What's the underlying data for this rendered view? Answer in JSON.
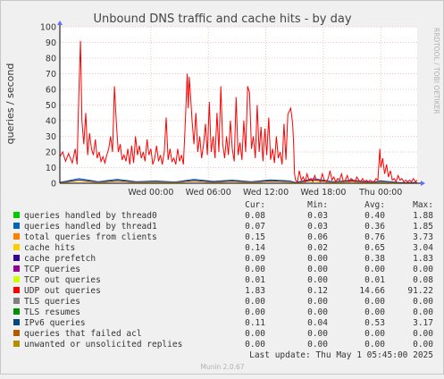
{
  "chart_data": {
    "type": "area",
    "title": "Unbound DNS traffic and cache hits - by day",
    "ylabel": "queries / second",
    "side_label": "RRDTOOL / TOBI OETIKER",
    "ylim": [
      0,
      100
    ],
    "yticks": [
      0,
      10,
      20,
      30,
      40,
      50,
      60,
      70,
      80,
      90,
      100
    ],
    "xticks": [
      "Wed 00:00",
      "Wed 06:00",
      "Wed 12:00",
      "Wed 18:00",
      "Thu 00:00"
    ],
    "x_hours": [
      -9.5,
      27.8
    ],
    "xtick_hours": [
      0,
      6,
      12,
      18,
      24
    ],
    "grid": true,
    "columns": [
      "Cur:",
      "Min:",
      "Avg:",
      "Max:"
    ],
    "series": [
      {
        "name": "queries handled by thread0",
        "color": "#00cc00",
        "stats": [
          "0.08",
          "0.03",
          "0.40",
          "1.88"
        ]
      },
      {
        "name": "queries handled by thread1",
        "color": "#0066b3",
        "stats": [
          "0.07",
          "0.03",
          "0.36",
          "1.85"
        ]
      },
      {
        "name": "total queries from clients",
        "color": "#ff8000",
        "stats": [
          "0.15",
          "0.06",
          "0.76",
          "3.73"
        ]
      },
      {
        "name": "cache hits",
        "color": "#ffcc00",
        "stats": [
          "0.14",
          "0.02",
          "0.65",
          "3.04"
        ]
      },
      {
        "name": "cache prefetch",
        "color": "#330099",
        "stats": [
          "0.09",
          "0.00",
          "0.38",
          "1.83"
        ]
      },
      {
        "name": "TCP queries",
        "color": "#990099",
        "stats": [
          "0.00",
          "0.00",
          "0.00",
          "0.00"
        ]
      },
      {
        "name": "TCP out queries",
        "color": "#ccff00",
        "stats": [
          "0.01",
          "0.00",
          "0.01",
          "0.08"
        ]
      },
      {
        "name": "UDP out queries",
        "color": "#ff0000",
        "stats": [
          "1.83",
          "0.12",
          "14.66",
          "91.22"
        ]
      },
      {
        "name": "TLS queries",
        "color": "#808080",
        "stats": [
          "0.00",
          "0.00",
          "0.00",
          "0.00"
        ]
      },
      {
        "name": "TLS resumes",
        "color": "#008f00",
        "stats": [
          "0.00",
          "0.00",
          "0.00",
          "0.00"
        ]
      },
      {
        "name": "IPv6 queries",
        "color": "#00487d",
        "stats": [
          "0.11",
          "0.04",
          "0.53",
          "3.17"
        ]
      },
      {
        "name": "queries that failed acl",
        "color": "#b35a00",
        "stats": [
          "0.00",
          "0.00",
          "0.00",
          "0.00"
        ]
      },
      {
        "name": "unwanted or unsolicited replies",
        "color": "#b38f00",
        "stats": [
          "0.00",
          "0.00",
          "0.00",
          "0.00"
        ]
      }
    ],
    "udp_out_profile": [
      [
        -9.5,
        17
      ],
      [
        -9.2,
        20
      ],
      [
        -8.9,
        14
      ],
      [
        -8.6,
        19
      ],
      [
        -8.2,
        13
      ],
      [
        -7.9,
        22
      ],
      [
        -7.7,
        12
      ],
      [
        -7.5,
        60
      ],
      [
        -7.35,
        91
      ],
      [
        -7.2,
        40
      ],
      [
        -7.0,
        25
      ],
      [
        -6.8,
        45
      ],
      [
        -6.6,
        18
      ],
      [
        -6.4,
        32
      ],
      [
        -6.2,
        22
      ],
      [
        -6.0,
        18
      ],
      [
        -5.8,
        28
      ],
      [
        -5.6,
        16
      ],
      [
        -5.4,
        20
      ],
      [
        -5.2,
        14
      ],
      [
        -5.0,
        17
      ],
      [
        -4.8,
        13
      ],
      [
        -4.6,
        18
      ],
      [
        -4.4,
        22
      ],
      [
        -4.2,
        30
      ],
      [
        -4.0,
        20
      ],
      [
        -3.8,
        62
      ],
      [
        -3.6,
        38
      ],
      [
        -3.4,
        20
      ],
      [
        -3.2,
        25
      ],
      [
        -3.0,
        15
      ],
      [
        -2.8,
        18
      ],
      [
        -2.6,
        14
      ],
      [
        -2.4,
        22
      ],
      [
        -2.2,
        12
      ],
      [
        -2.0,
        24
      ],
      [
        -1.8,
        13
      ],
      [
        -1.6,
        30
      ],
      [
        -1.4,
        18
      ],
      [
        -1.2,
        24
      ],
      [
        -1.0,
        16
      ],
      [
        -0.8,
        20
      ],
      [
        -0.6,
        14
      ],
      [
        -0.4,
        28
      ],
      [
        -0.2,
        18
      ],
      [
        0,
        22
      ],
      [
        0.2,
        12
      ],
      [
        0.4,
        16
      ],
      [
        0.6,
        24
      ],
      [
        0.8,
        14
      ],
      [
        1.0,
        18
      ],
      [
        1.2,
        12
      ],
      [
        1.4,
        20
      ],
      [
        1.6,
        42
      ],
      [
        1.8,
        15
      ],
      [
        2.0,
        22
      ],
      [
        2.2,
        14
      ],
      [
        2.4,
        16
      ],
      [
        2.6,
        12
      ],
      [
        2.8,
        22
      ],
      [
        3.0,
        14
      ],
      [
        3.2,
        18
      ],
      [
        3.4,
        12
      ],
      [
        3.6,
        40
      ],
      [
        3.8,
        70
      ],
      [
        3.9,
        48
      ],
      [
        4.0,
        68
      ],
      [
        4.15,
        55
      ],
      [
        4.3,
        40
      ],
      [
        4.5,
        25
      ],
      [
        4.7,
        45
      ],
      [
        4.9,
        20
      ],
      [
        5.1,
        30
      ],
      [
        5.3,
        16
      ],
      [
        5.5,
        25
      ],
      [
        5.7,
        38
      ],
      [
        5.9,
        18
      ],
      [
        6.1,
        52
      ],
      [
        6.3,
        20
      ],
      [
        6.5,
        30
      ],
      [
        6.7,
        16
      ],
      [
        6.9,
        45
      ],
      [
        7.1,
        20
      ],
      [
        7.3,
        62
      ],
      [
        7.5,
        25
      ],
      [
        7.7,
        16
      ],
      [
        7.9,
        30
      ],
      [
        8.1,
        18
      ],
      [
        8.3,
        40
      ],
      [
        8.5,
        22
      ],
      [
        8.7,
        14
      ],
      [
        8.9,
        55
      ],
      [
        9.1,
        18
      ],
      [
        9.3,
        26
      ],
      [
        9.5,
        15
      ],
      [
        9.7,
        40
      ],
      [
        9.9,
        20
      ],
      [
        10.1,
        62
      ],
      [
        10.3,
        58
      ],
      [
        10.5,
        22
      ],
      [
        10.7,
        30
      ],
      [
        10.9,
        16
      ],
      [
        11.1,
        50
      ],
      [
        11.3,
        20
      ],
      [
        11.5,
        36
      ],
      [
        11.7,
        14
      ],
      [
        11.9,
        35
      ],
      [
        12.1,
        18
      ],
      [
        12.3,
        42
      ],
      [
        12.5,
        15
      ],
      [
        12.7,
        22
      ],
      [
        12.9,
        13
      ],
      [
        13.1,
        30
      ],
      [
        13.3,
        16
      ],
      [
        13.5,
        20
      ],
      [
        13.7,
        12
      ],
      [
        13.9,
        38
      ],
      [
        14.1,
        15
      ],
      [
        14.3,
        44
      ],
      [
        14.6,
        48
      ],
      [
        14.8,
        38
      ],
      [
        14.9,
        25
      ],
      [
        15.0,
        6
      ],
      [
        15.1,
        2
      ],
      [
        15.3,
        1
      ],
      [
        15.5,
        8
      ],
      [
        15.7,
        2
      ],
      [
        15.9,
        4
      ],
      [
        16.1,
        1
      ],
      [
        16.3,
        6
      ],
      [
        16.5,
        2
      ],
      [
        16.7,
        3
      ],
      [
        16.9,
        1
      ],
      [
        17.1,
        5
      ],
      [
        17.3,
        2
      ],
      [
        17.5,
        2
      ],
      [
        17.7,
        1
      ],
      [
        17.9,
        6
      ],
      [
        18.1,
        2
      ],
      [
        18.3,
        1
      ],
      [
        18.5,
        3
      ],
      [
        18.7,
        8
      ],
      [
        18.9,
        2
      ],
      [
        19.1,
        4
      ],
      [
        19.3,
        1
      ],
      [
        19.5,
        3
      ],
      [
        19.7,
        2
      ],
      [
        19.9,
        6
      ],
      [
        20.1,
        1
      ],
      [
        20.3,
        2
      ],
      [
        20.5,
        5
      ],
      [
        20.7,
        1
      ],
      [
        20.9,
        3
      ],
      [
        21.1,
        2
      ],
      [
        21.3,
        1
      ],
      [
        21.5,
        4
      ],
      [
        21.7,
        2
      ],
      [
        21.9,
        1
      ],
      [
        22.1,
        3
      ],
      [
        22.3,
        1
      ],
      [
        22.5,
        2
      ],
      [
        22.7,
        1
      ],
      [
        22.9,
        2
      ],
      [
        23.1,
        1
      ],
      [
        23.3,
        1
      ],
      [
        23.5,
        3
      ],
      [
        23.7,
        2
      ],
      [
        23.9,
        22
      ],
      [
        24.0,
        10
      ],
      [
        24.2,
        16
      ],
      [
        24.4,
        6
      ],
      [
        24.6,
        12
      ],
      [
        24.8,
        4
      ],
      [
        25.0,
        8
      ],
      [
        25.2,
        2
      ],
      [
        25.4,
        3
      ],
      [
        25.6,
        1
      ],
      [
        25.8,
        5
      ],
      [
        26.0,
        2
      ],
      [
        26.2,
        3
      ],
      [
        26.4,
        1
      ],
      [
        26.6,
        2
      ],
      [
        26.8,
        1
      ],
      [
        27.0,
        2
      ],
      [
        27.2,
        1
      ],
      [
        27.4,
        3
      ],
      [
        27.6,
        1
      ],
      [
        27.8,
        2
      ]
    ],
    "base_profile": [
      [
        -9.5,
        0.5
      ],
      [
        -7.5,
        3
      ],
      [
        -5.5,
        1
      ],
      [
        -3.5,
        2.5
      ],
      [
        -1.5,
        1
      ],
      [
        0.5,
        1.5
      ],
      [
        2.5,
        0.8
      ],
      [
        4.5,
        2.5
      ],
      [
        6.5,
        1.2
      ],
      [
        8.5,
        2
      ],
      [
        10.5,
        1
      ],
      [
        12.5,
        2.2
      ],
      [
        14.5,
        1.5
      ],
      [
        15.1,
        0.5
      ],
      [
        17,
        3
      ],
      [
        19,
        1
      ],
      [
        21,
        2
      ],
      [
        23,
        0.6
      ],
      [
        24,
        1.6
      ],
      [
        26,
        0.4
      ],
      [
        27.8,
        0.5
      ]
    ]
  },
  "footer": {
    "last_update": "Last update: Thu May  1 05:45:00 2025",
    "version": "Munin 2.0.67"
  }
}
